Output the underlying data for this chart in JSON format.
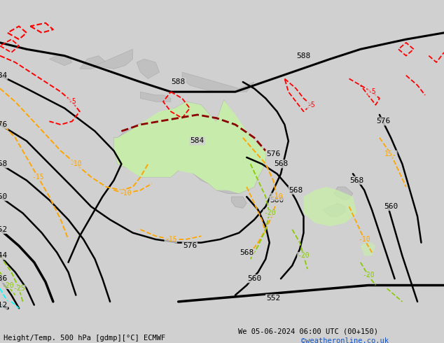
{
  "title_left": "Height/Temp. 500 hPa [gdmp][°C] ECMWF",
  "title_right": "We 05-06-2024 06:00 UTC (00+150)",
  "credit": "©weatheronline.co.uk",
  "bg_color": "#d0d0d0",
  "land_color": "#c0c0c0",
  "ocean_color": "#d0d0d0",
  "highlight_color": "#c8f0a8",
  "credit_color": "#1155cc",
  "fig_width": 6.34,
  "fig_height": 4.9,
  "dpi": 100,
  "xlim": [
    0,
    634
  ],
  "ylim": [
    0,
    490
  ]
}
